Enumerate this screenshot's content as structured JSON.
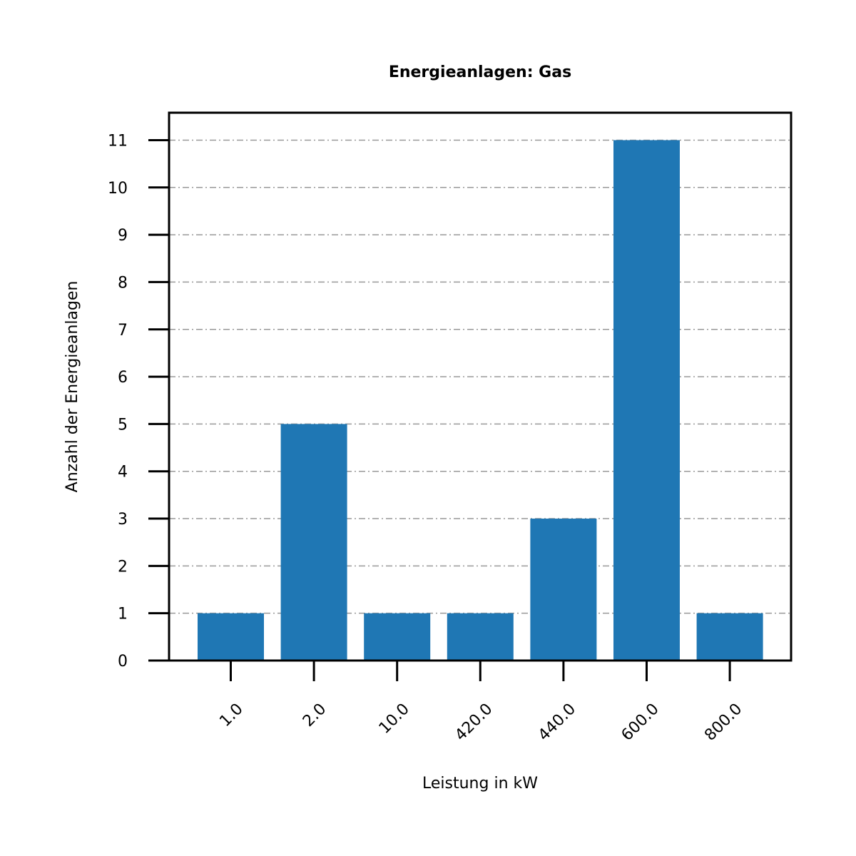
{
  "chart_data": {
    "type": "bar",
    "title": "Energieanlagen: Gas",
    "xlabel": "Leistung in kW",
    "ylabel": "Anzahl der Energieanlagen",
    "categories": [
      "1.0",
      "2.0",
      "10.0",
      "420.0",
      "440.0",
      "600.0",
      "800.0"
    ],
    "values": [
      1,
      5,
      1,
      1,
      3,
      11,
      1
    ],
    "yticks": [
      0,
      1,
      2,
      3,
      4,
      5,
      6,
      7,
      8,
      9,
      10,
      11
    ],
    "ylim": [
      0,
      11.58
    ],
    "grid": "y dash-dot",
    "bar_color": "#1f77b4",
    "grid_color": "#999999",
    "xtick_rotation": "45deg"
  }
}
